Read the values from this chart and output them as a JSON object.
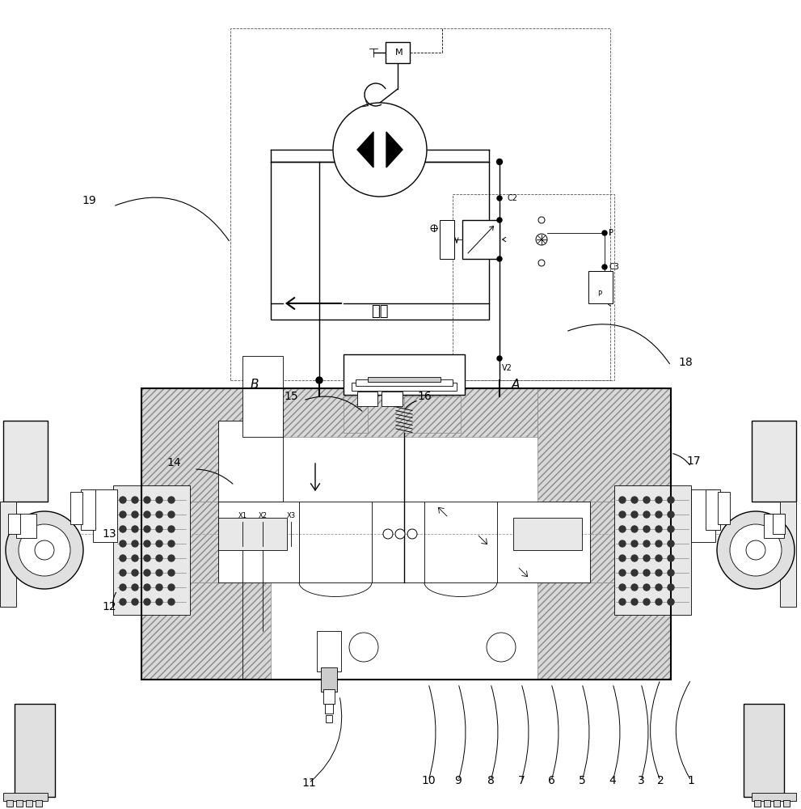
{
  "bg_color": "#ffffff",
  "line_color": "#000000",
  "figsize": [
    9.91,
    10.0
  ],
  "dpi": 100,
  "labels": {
    "chinese": "起升",
    "numbers": [
      "1",
      "2",
      "3",
      "4",
      "5",
      "6",
      "7",
      "8",
      "9",
      "10",
      "11",
      "12",
      "13",
      "14",
      "15",
      "16",
      "17",
      "18",
      "19"
    ],
    "ports": [
      "B",
      "A",
      "C2",
      "C3",
      "P",
      "V2",
      "X1",
      "X2",
      "X3"
    ]
  }
}
